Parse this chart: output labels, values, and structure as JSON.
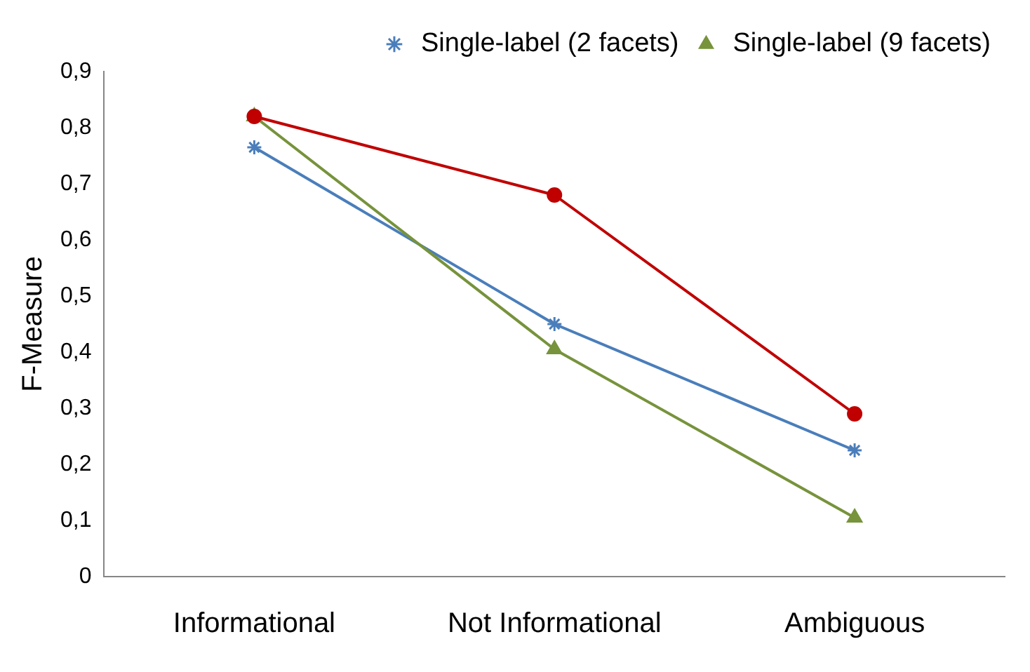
{
  "chart_data": {
    "type": "line",
    "ylabel": "F-Measure",
    "categories": [
      "Informational",
      "Not Informational",
      "Ambiguous"
    ],
    "series": [
      {
        "name": "Single-label (2 facets)",
        "color": "#4a7ebb",
        "marker": "cross",
        "values": [
          0.765,
          0.45,
          0.225
        ]
      },
      {
        "name": "Single-label (9 facets)",
        "color": "#77933c",
        "marker": "triangle",
        "values": [
          0.82,
          0.405,
          0.105
        ]
      },
      {
        "color": "#c00000",
        "marker": "circle",
        "values": [
          0.82,
          0.68,
          0.29
        ]
      }
    ],
    "ylim": [
      0,
      0.9
    ],
    "yticks": [
      {
        "value": 0,
        "label": "0"
      },
      {
        "value": 0.1,
        "label": "0,1"
      },
      {
        "value": 0.2,
        "label": "0,2"
      },
      {
        "value": 0.3,
        "label": "0,3"
      },
      {
        "value": 0.4,
        "label": "0,4"
      },
      {
        "value": 0.5,
        "label": "0,5"
      },
      {
        "value": 0.6,
        "label": "0,6"
      },
      {
        "value": 0.7,
        "label": "0,7"
      },
      {
        "value": 0.8,
        "label": "0,8"
      },
      {
        "value": 0.9,
        "label": "0,9"
      }
    ],
    "grid": false,
    "legend": "top right",
    "line_style": "solid"
  }
}
